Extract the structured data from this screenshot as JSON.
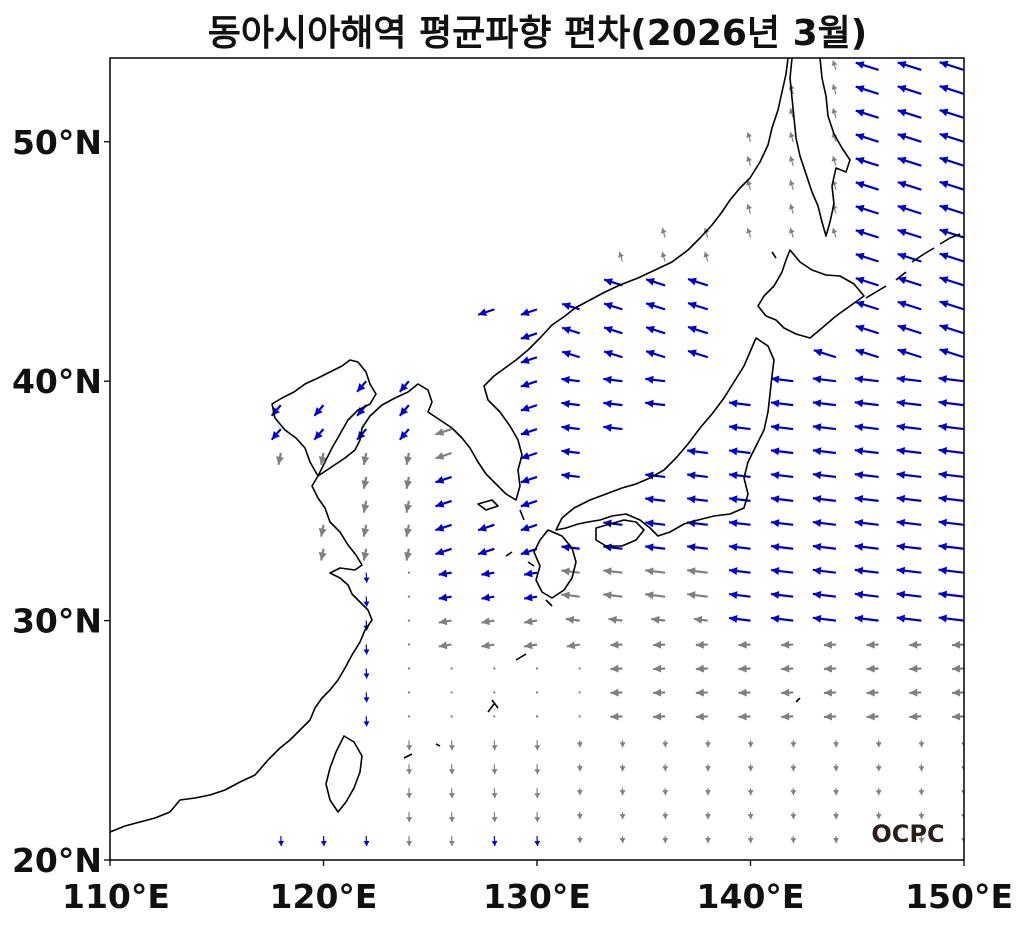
{
  "title": "동아시아해역 평균파향 편차(2026년 3월)",
  "logo": "OCPC",
  "axes": {
    "x_ticks": [
      {
        "value": 110,
        "label": "110°E"
      },
      {
        "value": 120,
        "label": "120°E"
      },
      {
        "value": 130,
        "label": "130°E"
      },
      {
        "value": 140,
        "label": "140°E"
      },
      {
        "value": 150,
        "label": "150°E"
      }
    ],
    "y_ticks": [
      {
        "value": 20,
        "label": "20°N"
      },
      {
        "value": 30,
        "label": "30°N"
      },
      {
        "value": 40,
        "label": "40°N"
      },
      {
        "value": 50,
        "label": "50°N"
      }
    ],
    "lon_range": [
      110,
      150
    ],
    "lat_range": [
      20,
      53.5
    ]
  },
  "colors": {
    "significant": "#0000cc",
    "normal": "#808080",
    "coast": "#000000",
    "frame": "#000000"
  },
  "chart_data": {
    "type": "vector-field",
    "units": "wave direction anomaly arrows",
    "samples": [
      {
        "lon": 150,
        "lat": 48,
        "dir": "west",
        "class": "significant"
      },
      {
        "lon": 150,
        "lat": 44,
        "dir": "west",
        "class": "significant"
      },
      {
        "lon": 146,
        "lat": 38,
        "dir": "west",
        "class": "significant"
      },
      {
        "lon": 140,
        "lat": 34,
        "dir": "west",
        "class": "significant"
      },
      {
        "lon": 132,
        "lat": 40,
        "dir": "west",
        "class": "significant"
      },
      {
        "lon": 134,
        "lat": 32,
        "dir": "west",
        "class": "normal"
      },
      {
        "lon": 144,
        "lat": 30,
        "dir": "west",
        "class": "significant"
      },
      {
        "lon": 130,
        "lat": 22,
        "dir": "south",
        "class": "normal"
      },
      {
        "lon": 122,
        "lat": 28,
        "dir": "south",
        "class": "significant"
      },
      {
        "lon": 118,
        "lat": 22,
        "dir": "south",
        "class": "significant"
      }
    ]
  }
}
